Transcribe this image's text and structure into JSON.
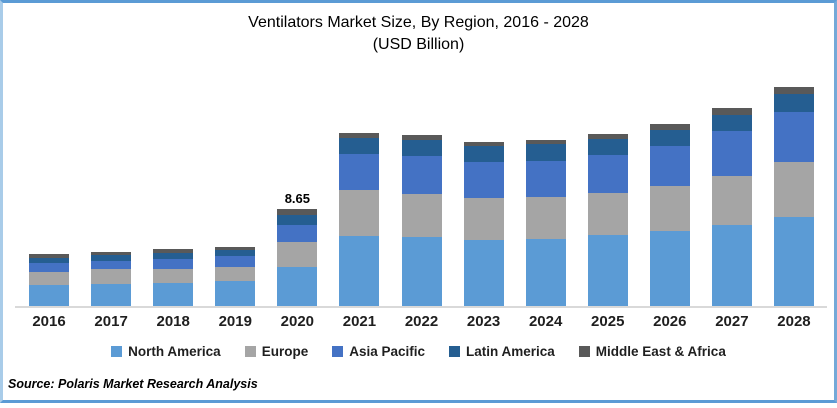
{
  "title": {
    "line1": "Ventilators Market Size, By Region, 2016 - 2028",
    "line2": "(USD Billion)"
  },
  "source": "Source: Polaris Market Research Analysis",
  "frame": {
    "border_color_top": "#5B9BD5",
    "border_color_left": "#A9CCE9",
    "border_color_right": "#74A9D8",
    "axis_line_color": "#D9D9D9"
  },
  "chart_data": {
    "type": "bar",
    "stacked": true,
    "title": "Ventilators Market Size, By Region, 2016 - 2028 (USD Billion)",
    "xlabel": "",
    "ylabel": "USD Billion",
    "y_axis_visible": false,
    "grid": false,
    "legend_position": "bottom",
    "categories": [
      "2016",
      "2017",
      "2018",
      "2019",
      "2020",
      "2021",
      "2022",
      "2023",
      "2024",
      "2025",
      "2026",
      "2027",
      "2028"
    ],
    "series": [
      {
        "name": "North America",
        "color": "#5B9BD5",
        "values": [
          1.88,
          2.0,
          2.09,
          2.24,
          3.48,
          6.3,
          6.18,
          5.88,
          6.02,
          6.36,
          6.71,
          7.25,
          8.0
        ]
      },
      {
        "name": "Europe",
        "color": "#A5A5A5",
        "values": [
          1.19,
          1.28,
          1.25,
          1.28,
          2.24,
          4.12,
          3.88,
          3.76,
          3.73,
          3.79,
          4.03,
          4.39,
          4.87
        ]
      },
      {
        "name": "Asia Pacific",
        "color": "#4472C4",
        "values": [
          0.74,
          0.74,
          0.9,
          0.96,
          1.5,
          3.22,
          3.37,
          3.29,
          3.22,
          3.37,
          3.58,
          4.0,
          4.48
        ]
      },
      {
        "name": "Latin America",
        "color": "#255E91",
        "values": [
          0.51,
          0.51,
          0.54,
          0.51,
          0.96,
          1.43,
          1.41,
          1.41,
          1.5,
          1.41,
          1.43,
          1.5,
          1.64
        ]
      },
      {
        "name": "Middle East & Africa",
        "color": "#595959",
        "values": [
          0.3,
          0.33,
          0.3,
          0.33,
          0.47,
          0.42,
          0.45,
          0.38,
          0.42,
          0.47,
          0.54,
          0.6,
          0.63
        ]
      }
    ],
    "totals": [
      4.62,
      4.86,
      5.08,
      5.32,
      8.65,
      15.49,
      15.29,
      14.72,
      14.89,
      15.4,
      16.29,
      17.74,
      19.62
    ],
    "annotations": [
      {
        "category": "2020",
        "text": "8.65"
      }
    ]
  }
}
